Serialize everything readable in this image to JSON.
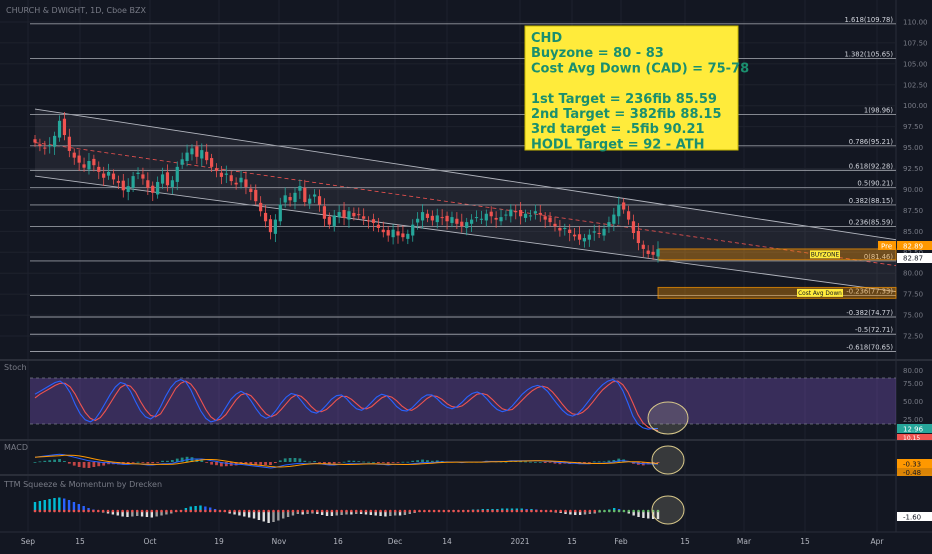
{
  "header": {
    "symbol_title": "CHURCH & DWIGHT, 1D, Cboe BZX"
  },
  "annotation": {
    "lines": [
      "CHD",
      "Buyzone = 80 - 83",
      "Cost Avg Down (CAD) = 75-78",
      "",
      "1st Target = 236fib 85.59",
      "2nd Target = 382fib 88.15",
      "3rd target = .5fib 90.21",
      "HODL Target = 92 - ATH"
    ],
    "bg_color": "#ffeb3b",
    "text_color": "#1a8f6e"
  },
  "zones": [
    {
      "label": "BUYZONE",
      "from": 81.6,
      "to": 82.9
    },
    {
      "label": "Cost Avg Down",
      "from": 77.0,
      "to": 78.3
    }
  ],
  "price_badges": {
    "pre_label": "Pre",
    "pre_value": "82.89",
    "last_value": "82.87"
  },
  "panes": {
    "stoch": {
      "title": "Stoch",
      "value_1": "12.96",
      "value_2": "10.15",
      "ticks": [
        "80.00",
        "75.00",
        "50.00",
        "25.00"
      ]
    },
    "macd": {
      "title": "MACD",
      "value_1": "-0.33",
      "value_2": "-0.48"
    },
    "ttm": {
      "title": "TTM Squeeze & Momentum by Drecken",
      "value": "-1.60"
    }
  },
  "colors": {
    "up": "#26a69a",
    "down": "#ef5350",
    "stoch_k": "#2962ff",
    "stoch_d": "#ef5350",
    "stoch_band": "#7e57c2",
    "channel": "#b2b5be"
  },
  "chart_data": {
    "type": "candlestick",
    "title": "CHURCH & DWIGHT, 1D, Cboe BZX",
    "ylim": [
      70,
      112
    ],
    "y_ticks": [
      72.5,
      75,
      77.5,
      80,
      82.5,
      85,
      87.5,
      90,
      92.5,
      95,
      97.5,
      100,
      102.5,
      105,
      107.5,
      110
    ],
    "x_tick_labels": [
      "Sep",
      "15",
      "Oct",
      "19",
      "Nov",
      "16",
      "Dec",
      "14",
      "2021",
      "15",
      "Feb",
      "15",
      "Mar",
      "15",
      "Apr"
    ],
    "fib_levels": [
      {
        "label": "1.618(109.78)",
        "value": 109.78
      },
      {
        "label": "1.382(105.65)",
        "value": 105.65
      },
      {
        "label": "1(98.96)",
        "value": 98.96
      },
      {
        "label": "0.786(95.21)",
        "value": 95.21
      },
      {
        "label": "0.618(92.28)",
        "value": 92.28
      },
      {
        "label": "0.5(90.21)",
        "value": 90.21
      },
      {
        "label": "0.382(88.15)",
        "value": 88.15
      },
      {
        "label": "0.236(85.59)",
        "value": 85.59
      },
      {
        "label": "0(81.46)",
        "value": 81.46
      },
      {
        "label": "-0.236(77.33)",
        "value": 77.33
      },
      {
        "label": "-0.382(74.77)",
        "value": 74.77
      },
      {
        "label": "-0.5(72.71)",
        "value": 72.71
      },
      {
        "label": "-0.618(70.65)",
        "value": 70.65
      }
    ],
    "close_series": [
      95.6,
      95.2,
      94.9,
      95.3,
      96.4,
      98.2,
      96.5,
      94.6,
      93.8,
      93.2,
      92.6,
      93.4,
      92.9,
      92.1,
      91.4,
      92.1,
      91.2,
      90.8,
      89.9,
      90.4,
      91.6,
      92.0,
      91.3,
      90.2,
      89.6,
      90.9,
      91.8,
      90.5,
      91.1,
      92.7,
      93.6,
      94.4,
      94.9,
      93.9,
      94.7,
      93.5,
      92.7,
      92.2,
      91.5,
      91.9,
      91.0,
      90.6,
      91.4,
      90.3,
      89.7,
      88.6,
      87.4,
      86.2,
      84.9,
      86.4,
      88.2,
      89.3,
      88.7,
      89.6,
      90.4,
      88.5,
      88.9,
      89.4,
      88.2,
      86.5,
      85.8,
      86.9,
      87.3,
      86.6,
      87.4,
      86.8,
      87.0,
      86.5,
      86.2,
      86.0,
      85.4,
      84.9,
      84.5,
      85.2,
      84.5,
      84.3,
      84.7,
      85.8,
      86.5,
      87.3,
      86.6,
      86.3,
      86.9,
      86.6,
      86.2,
      86.7,
      85.9,
      85.6,
      86.1,
      86.4,
      86.7,
      86.5,
      87.1,
      86.8,
      86.4,
      86.7,
      87.0,
      87.6,
      87.3,
      86.8,
      87.1,
      86.9,
      87.4,
      87.0,
      86.4,
      86.1,
      85.6,
      85.1,
      85.4,
      84.8,
      84.4,
      84.0,
      84.2,
      84.6,
      85.0,
      84.7,
      85.3,
      86.1,
      87.0,
      88.2,
      87.6,
      86.4,
      84.8,
      83.6,
      82.9,
      82.3,
      82.2,
      82.87
    ],
    "stoch_k": [
      60,
      64,
      68,
      72,
      76,
      78,
      73,
      62,
      46,
      33,
      25,
      22,
      26,
      36,
      48,
      60,
      70,
      76,
      74,
      64,
      50,
      37,
      29,
      26,
      31,
      43,
      57,
      69,
      77,
      80,
      77,
      66,
      51,
      37,
      27,
      22,
      24,
      31,
      42,
      53,
      60,
      64,
      60,
      51,
      40,
      31,
      27,
      30,
      38,
      48,
      56,
      61,
      59,
      51,
      42,
      36,
      34,
      38,
      45,
      53,
      58,
      59,
      54,
      46,
      40,
      38,
      42,
      49,
      56,
      60,
      58,
      51,
      43,
      38,
      37,
      41,
      48,
      55,
      59,
      59,
      54,
      47,
      42,
      40,
      43,
      49,
      56,
      61,
      63,
      60,
      53,
      45,
      39,
      36,
      38,
      44,
      52,
      60,
      66,
      70,
      72,
      70,
      64,
      55,
      46,
      38,
      32,
      30,
      33,
      40,
      49,
      58,
      66,
      73,
      78,
      80,
      76,
      65,
      48,
      30,
      19,
      14,
      12,
      13,
      12.96
    ],
    "stoch_d": [
      55,
      60,
      64,
      68,
      72,
      75,
      75,
      70,
      60,
      47,
      35,
      27,
      24,
      28,
      37,
      48,
      59,
      69,
      73,
      71,
      63,
      50,
      39,
      31,
      29,
      33,
      44,
      56,
      68,
      75,
      78,
      74,
      65,
      52,
      39,
      29,
      24,
      26,
      32,
      42,
      52,
      59,
      61,
      58,
      50,
      41,
      33,
      29,
      32,
      39,
      47,
      55,
      59,
      57,
      51,
      43,
      37,
      36,
      39,
      45,
      52,
      57,
      57,
      53,
      47,
      41,
      40,
      43,
      49,
      55,
      58,
      56,
      51,
      44,
      39,
      38,
      42,
      48,
      54,
      58,
      57,
      53,
      47,
      43,
      42,
      44,
      49,
      55,
      60,
      61,
      59,
      53,
      46,
      40,
      38,
      39,
      45,
      52,
      59,
      65,
      69,
      71,
      69,
      63,
      55,
      46,
      38,
      33,
      32,
      35,
      41,
      49,
      58,
      66,
      72,
      77,
      78,
      73,
      63,
      48,
      32,
      21,
      15,
      12,
      10.15
    ],
    "macd_line": [
      0.8,
      0.9,
      1.0,
      1.1,
      1.2,
      1.3,
      1.2,
      1.0,
      0.8,
      0.6,
      0.4,
      0.2,
      0.1,
      0.0,
      -0.1,
      -0.1,
      -0.2,
      -0.3,
      -0.4,
      -0.4,
      -0.3,
      -0.3,
      -0.4,
      -0.5,
      -0.5,
      -0.4,
      -0.3,
      -0.3,
      -0.2,
      0.0,
      0.2,
      0.4,
      0.5,
      0.5,
      0.5,
      0.4,
      0.2,
      0.1,
      -0.1,
      -0.2,
      -0.3,
      -0.4,
      -0.4,
      -0.5,
      -0.6,
      -0.7,
      -0.8,
      -0.9,
      -1.0,
      -0.9,
      -0.7,
      -0.5,
      -0.4,
      -0.3,
      -0.2,
      -0.3,
      -0.3,
      -0.2,
      -0.3,
      -0.4,
      -0.5,
      -0.5,
      -0.4,
      -0.4,
      -0.3,
      -0.3,
      -0.3,
      -0.3,
      -0.3,
      -0.3,
      -0.4,
      -0.4,
      -0.5,
      -0.4,
      -0.4,
      -0.4,
      -0.4,
      -0.3,
      -0.2,
      -0.1,
      -0.1,
      -0.1,
      0.0,
      0.0,
      0.0,
      0.0,
      0.0,
      -0.1,
      0.0,
      0.0,
      0.0,
      0.0,
      0.1,
      0.1,
      0.1,
      0.1,
      0.1,
      0.2,
      0.2,
      0.2,
      0.2,
      0.2,
      0.2,
      0.2,
      0.1,
      0.1,
      0.0,
      -0.1,
      -0.1,
      -0.2,
      -0.2,
      -0.3,
      -0.3,
      -0.3,
      -0.2,
      -0.2,
      -0.2,
      -0.1,
      0.0,
      0.2,
      0.2,
      0.1,
      -0.1,
      -0.2,
      -0.3,
      -0.3,
      -0.33,
      -0.33
    ],
    "ttm_momentum": [
      1.8,
      2.0,
      2.2,
      2.4,
      2.6,
      2.7,
      2.5,
      2.2,
      1.8,
      1.4,
      1.0,
      0.6,
      0.3,
      0.0,
      -0.3,
      -0.5,
      -0.7,
      -0.9,
      -1.1,
      -1.2,
      -1.1,
      -1.0,
      -1.1,
      -1.2,
      -1.3,
      -1.1,
      -0.9,
      -0.7,
      -0.5,
      -0.2,
      0.2,
      0.6,
      0.9,
      1.0,
      1.1,
      0.9,
      0.7,
      0.4,
      0.1,
      -0.2,
      -0.5,
      -0.7,
      -0.9,
      -1.1,
      -1.3,
      -1.5,
      -1.8,
      -2.1,
      -2.4,
      -2.2,
      -1.9,
      -1.5,
      -1.2,
      -0.9,
      -0.6,
      -0.7,
      -0.6,
      -0.5,
      -0.6,
      -0.8,
      -1.0,
      -1.0,
      -0.9,
      -0.8,
      -0.7,
      -0.7,
      -0.6,
      -0.6,
      -0.7,
      -0.8,
      -0.9,
      -1.0,
      -1.1,
      -1.0,
      -0.9,
      -0.9,
      -0.8,
      -0.6,
      -0.4,
      -0.2,
      -0.1,
      0.0,
      0.1,
      0.1,
      0.1,
      0.2,
      0.2,
      0.1,
      0.2,
      0.2,
      0.3,
      0.3,
      0.4,
      0.4,
      0.4,
      0.4,
      0.5,
      0.5,
      0.5,
      0.5,
      0.5,
      0.4,
      0.4,
      0.3,
      0.2,
      0.1,
      -0.1,
      -0.3,
      -0.4,
      -0.6,
      -0.7,
      -0.8,
      -0.8,
      -0.7,
      -0.6,
      -0.5,
      -0.3,
      0.0,
      0.3,
      0.6,
      0.4,
      0.0,
      -0.5,
      -0.9,
      -1.2,
      -1.4,
      -1.5,
      -1.6,
      -1.6
    ]
  }
}
